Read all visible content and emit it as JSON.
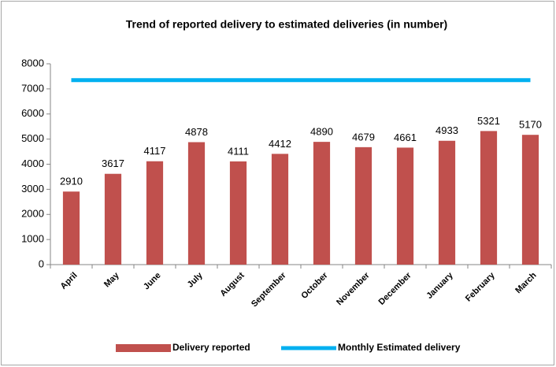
{
  "chart_data": {
    "type": "bar",
    "title": "Trend of reported delivery to estimated deliveries (in number)",
    "categories": [
      "April",
      "May",
      "June",
      "July",
      "August",
      "September",
      "October",
      "November",
      "December",
      "January",
      "February",
      "March"
    ],
    "series": [
      {
        "name": "Delivery reported",
        "type": "bar",
        "color": "#c0504d",
        "values": [
          2910,
          3617,
          4117,
          4878,
          4111,
          4412,
          4890,
          4679,
          4661,
          4933,
          5321,
          5170
        ]
      },
      {
        "name": "Monthly Estimated delivery",
        "type": "line",
        "color": "#00b0f0",
        "values": [
          7350,
          7350,
          7350,
          7350,
          7350,
          7350,
          7350,
          7350,
          7350,
          7350,
          7350,
          7350
        ]
      }
    ],
    "ylim": [
      0,
      8000
    ],
    "yticks": [
      0,
      1000,
      2000,
      3000,
      4000,
      5000,
      6000,
      7000,
      8000
    ],
    "grid": false,
    "legend": "bottom"
  }
}
